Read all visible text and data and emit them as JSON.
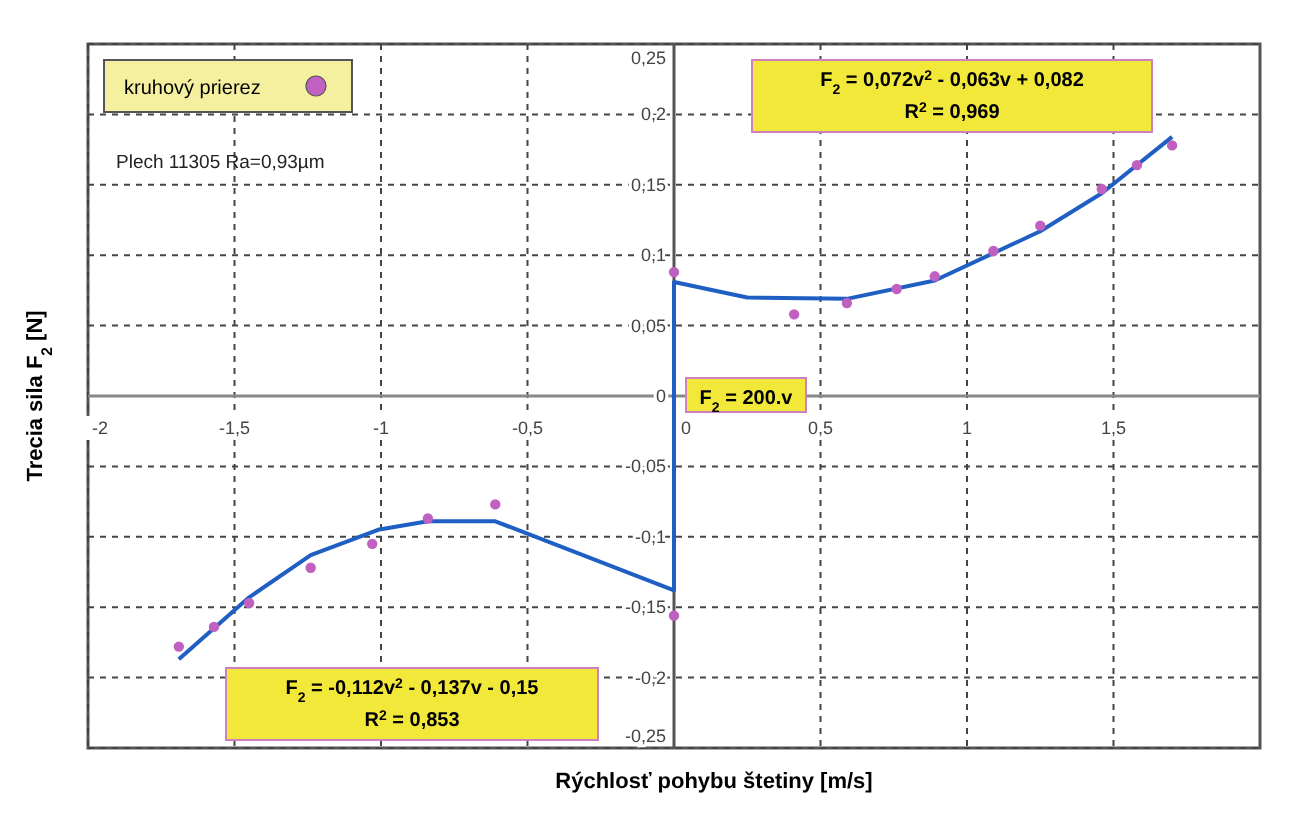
{
  "chart_data": {
    "type": "scatter",
    "xlabel": "Rýchlosť pohybu štetiny [m/s]",
    "ylabel": "Trecia sila F$_{2}$ [N]",
    "xlim": [
      -2,
      2
    ],
    "ylim": [
      -0.25,
      0.25
    ],
    "xticks": [
      -2,
      {
        "value": -1.5,
        "label": "-1,5"
      },
      -1,
      {
        "value": -0.5,
        "label": "-0,5"
      },
      0,
      {
        "value": 0.5,
        "label": "0,5"
      },
      1,
      {
        "value": 1.5,
        "label": "1,5"
      }
    ],
    "yticks": [
      {
        "value": -0.25,
        "label": "-0,25"
      },
      {
        "value": -0.2,
        "label": "-0,2"
      },
      {
        "value": -0.15,
        "label": "-0,15"
      },
      {
        "value": -0.1,
        "label": "-0,1"
      },
      {
        "value": -0.05,
        "label": "-0,05"
      },
      0,
      {
        "value": 0.05,
        "label": "0,05"
      },
      {
        "value": 0.1,
        "label": "0,1"
      },
      {
        "value": 0.15,
        "label": "0,15"
      },
      {
        "value": 0.2,
        "label": "0,2"
      },
      {
        "value": 0.25,
        "label": "0,25"
      }
    ],
    "grid": true,
    "legend": "top left",
    "marker": "circle",
    "series": [
      {
        "type": "line",
        "color": "#1f5fc4",
        "marker": "none",
        "line_style": "solid",
        "x": [
          -1.69,
          -1.45,
          -1.24,
          -1.01,
          -0.84,
          -0.61,
          0,
          0,
          0.25,
          0.59,
          0.89,
          1.25,
          1.46,
          1.7
        ],
        "values": [
          -0.187,
          -0.143,
          -0.113,
          -0.095,
          -0.089,
          -0.089,
          -0.138,
          0.081,
          0.07,
          0.069,
          0.082,
          0.117,
          0.144,
          0.184
        ]
      },
      {
        "name": "kruhový prierez",
        "color": "#c060c0",
        "x": [
          -1.69,
          -1.57,
          -1.45,
          -1.24,
          -1.03,
          -0.84,
          -0.61,
          0,
          0,
          0.41,
          0.59,
          0.76,
          0.89,
          1.09,
          1.25,
          1.46,
          1.58,
          1.7
        ],
        "values": [
          -0.178,
          -0.164,
          -0.147,
          -0.122,
          -0.105,
          -0.087,
          -0.077,
          -0.156,
          0.088,
          0.058,
          0.066,
          0.076,
          0.085,
          0.103,
          0.121,
          0.147,
          0.164,
          0.178
        ]
      }
    ],
    "annotations": [
      "Plech 11305 Ra=0,93µm",
      "F$_{2}$ = 0,072v$^{2}$ - 0,063v + 0,082",
      "R$^{2}$ = 0,969",
      "F$_{2}$ = -0,112v$^{2}$ - 0,137v - 0,15",
      "R$^{2}$ = 0,853",
      "F$_{2}$ = 200.v"
    ]
  }
}
